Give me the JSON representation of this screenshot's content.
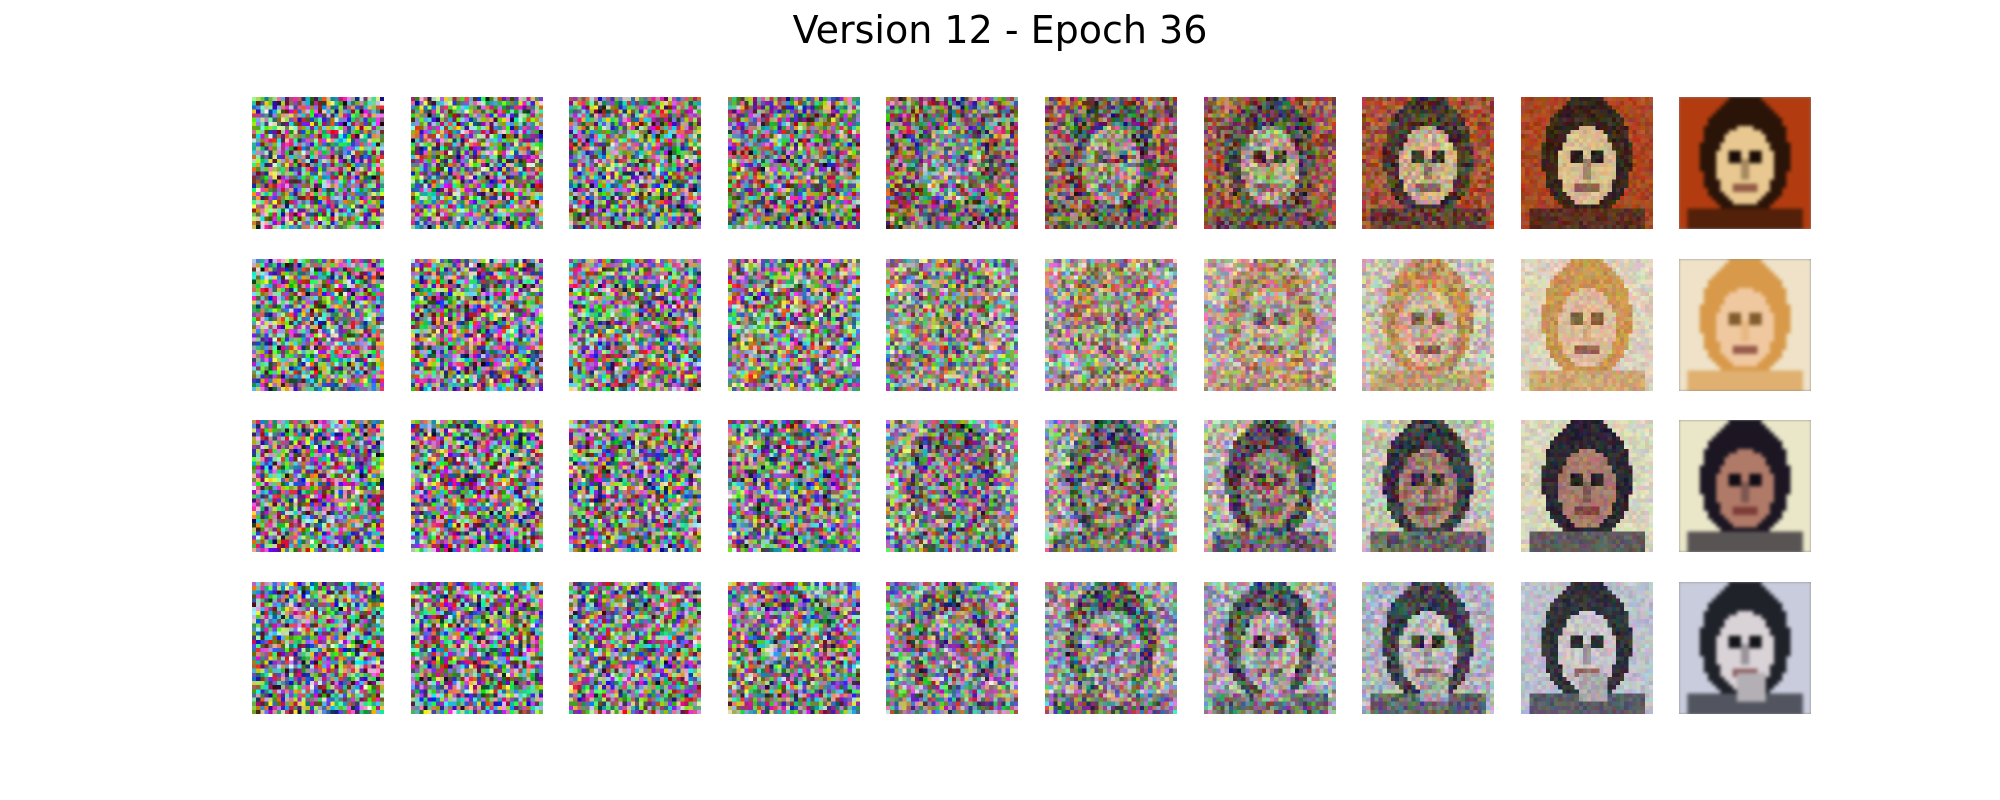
{
  "figure": {
    "title": "Version 12 - Epoch 36"
  },
  "grid": {
    "rows": 4,
    "columns": 10,
    "row_subjects": [
      {
        "subject": "face-long-dark-hair-warm-background",
        "palette": [
          "#b23c10",
          "#2a1408",
          "#e8c890"
        ]
      },
      {
        "subject": "face-blonde-hair-light-background",
        "palette": [
          "#efe2c8",
          "#d89a4a",
          "#f0c8a0"
        ]
      },
      {
        "subject": "face-dark-hair-pale-side-background",
        "palette": [
          "#eae6c8",
          "#1b1622",
          "#b07a68"
        ]
      },
      {
        "subject": "face-dark-hair-grey-blue-background",
        "palette": [
          "#c8ccdc",
          "#20222a",
          "#d9d2d6"
        ]
      }
    ],
    "denoising_levels": [
      0.0,
      0.05,
      0.1,
      0.15,
      0.25,
      0.38,
      0.52,
      0.68,
      0.84,
      1.0
    ]
  }
}
